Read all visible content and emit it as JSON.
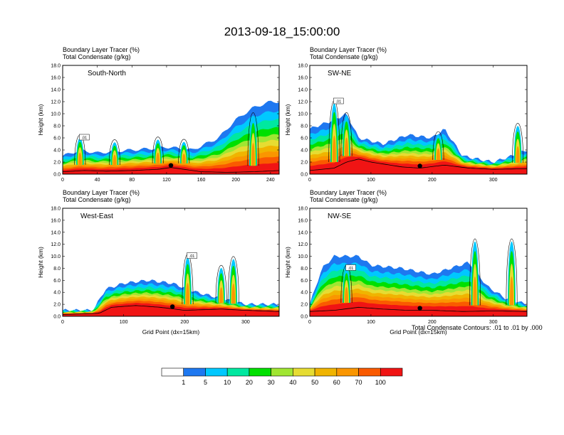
{
  "figure": {
    "title": "2013-09-18_15:00:00",
    "contour_note": "Total Condensate Contours: .01 to .01 by .000",
    "xaxis_title": "Grid Point (dx=15km)",
    "yaxis_title": "Height (km)",
    "field_label_1": "Boundary Layer Tracer",
    "field_unit_1": "(%)",
    "field_label_2": "Total Condensate",
    "field_unit_2": "(g/kg)",
    "contour_label": ".01"
  },
  "colorbar": {
    "colors": [
      "#ffffff",
      "#1e78f0",
      "#00c8ff",
      "#00e8a0",
      "#00e000",
      "#a0e632",
      "#e6dc32",
      "#f0b400",
      "#fa9600",
      "#fa5a00",
      "#f01414"
    ],
    "labels": [
      "1",
      "5",
      "10",
      "20",
      "30",
      "40",
      "50",
      "60",
      "70",
      "100"
    ]
  },
  "chart_data": [
    {
      "type": "heatmap",
      "name": "South-North",
      "xlabel": "",
      "ylabel": "Height (km)",
      "xlim": [
        0,
        250
      ],
      "ylim": [
        0,
        18
      ],
      "xticks": [
        0,
        40,
        80,
        120,
        160,
        200,
        240
      ],
      "yticks": [
        "0.0",
        "2.0",
        "4.0",
        "6.0",
        "8.0",
        "10.0",
        "12.0",
        "14.0",
        "16.0",
        "18.0"
      ],
      "marker_x": 125,
      "terrain_km": [
        [
          0,
          0.4
        ],
        [
          25,
          0.6
        ],
        [
          50,
          0.5
        ],
        [
          80,
          0.6
        ],
        [
          110,
          0.8
        ],
        [
          125,
          1.1
        ],
        [
          140,
          0.8
        ],
        [
          160,
          0.4
        ],
        [
          190,
          0.3
        ],
        [
          220,
          0.4
        ],
        [
          250,
          0.6
        ]
      ],
      "pbl_top_km": [
        [
          0,
          3.0
        ],
        [
          20,
          4.0
        ],
        [
          40,
          3.5
        ],
        [
          60,
          3.8
        ],
        [
          80,
          4.0
        ],
        [
          100,
          4.2
        ],
        [
          120,
          4.5
        ],
        [
          150,
          4.0
        ],
        [
          180,
          6.0
        ],
        [
          200,
          9.0
        ],
        [
          220,
          11.0
        ],
        [
          240,
          12.0
        ],
        [
          250,
          12.0
        ]
      ],
      "cloud_tops_km": [
        [
          20,
          7.5
        ],
        [
          60,
          6.5
        ],
        [
          110,
          7.0
        ],
        [
          140,
          6.5
        ],
        [
          220,
          12.5
        ]
      ]
    },
    {
      "type": "heatmap",
      "name": "SW-NE",
      "xlabel": "",
      "ylabel": "Height (km)",
      "xlim": [
        0,
        355
      ],
      "ylim": [
        0,
        18
      ],
      "xticks": [
        0,
        100,
        200,
        300
      ],
      "yticks": [
        "0.0",
        "2.0",
        "4.0",
        "6.0",
        "8.0",
        "10.0",
        "12.0",
        "14.0",
        "16.0",
        "18.0"
      ],
      "marker_x": 180,
      "terrain_km": [
        [
          0,
          0.6
        ],
        [
          40,
          1.0
        ],
        [
          60,
          2.0
        ],
        [
          80,
          2.5
        ],
        [
          100,
          2.0
        ],
        [
          150,
          1.2
        ],
        [
          180,
          1.0
        ],
        [
          220,
          1.5
        ],
        [
          260,
          1.0
        ],
        [
          300,
          0.8
        ],
        [
          355,
          0.9
        ]
      ],
      "pbl_top_km": [
        [
          0,
          7.5
        ],
        [
          40,
          9.0
        ],
        [
          60,
          10.0
        ],
        [
          80,
          6.0
        ],
        [
          120,
          5.0
        ],
        [
          160,
          6.5
        ],
        [
          200,
          6.0
        ],
        [
          220,
          7.5
        ],
        [
          250,
          3.0
        ],
        [
          300,
          2.0
        ],
        [
          330,
          3.0
        ],
        [
          355,
          4.0
        ]
      ],
      "cloud_tops_km": [
        [
          40,
          15.0
        ],
        [
          60,
          12.0
        ],
        [
          210,
          8.0
        ],
        [
          340,
          10.0
        ]
      ]
    },
    {
      "type": "heatmap",
      "name": "West-East",
      "xlabel": "Grid Point (dx=15km)",
      "ylabel": "Height (km)",
      "xlim": [
        0,
        355
      ],
      "ylim": [
        0,
        18
      ],
      "xticks": [
        0,
        100,
        200,
        300
      ],
      "yticks": [
        "0.0",
        "2.0",
        "4.0",
        "6.0",
        "8.0",
        "10.0",
        "12.0",
        "14.0",
        "16.0",
        "18.0"
      ],
      "marker_x": 180,
      "terrain_km": [
        [
          0,
          0.3
        ],
        [
          60,
          0.5
        ],
        [
          80,
          1.5
        ],
        [
          120,
          1.8
        ],
        [
          160,
          1.5
        ],
        [
          200,
          1.0
        ],
        [
          260,
          1.2
        ],
        [
          300,
          1.0
        ],
        [
          355,
          0.8
        ]
      ],
      "pbl_top_km": [
        [
          0,
          1.0
        ],
        [
          50,
          1.0
        ],
        [
          70,
          4.5
        ],
        [
          100,
          5.5
        ],
        [
          140,
          6.0
        ],
        [
          180,
          5.5
        ],
        [
          220,
          4.0
        ],
        [
          260,
          3.0
        ],
        [
          300,
          2.0
        ],
        [
          355,
          2.0
        ]
      ],
      "cloud_tops_km": [
        [
          205,
          12.5
        ],
        [
          260,
          10.0
        ],
        [
          280,
          12.0
        ]
      ]
    },
    {
      "type": "heatmap",
      "name": "NW-SE",
      "xlabel": "Grid Point (dx=15km)",
      "ylabel": "Height (km)",
      "xlim": [
        0,
        355
      ],
      "ylim": [
        0,
        18
      ],
      "xticks": [
        0,
        100,
        200,
        300
      ],
      "yticks": [
        "0.0",
        "2.0",
        "4.0",
        "6.0",
        "8.0",
        "10.0",
        "12.0",
        "14.0",
        "16.0",
        "18.0"
      ],
      "marker_x": 180,
      "terrain_km": [
        [
          0,
          0.8
        ],
        [
          40,
          1.0
        ],
        [
          80,
          1.5
        ],
        [
          120,
          1.2
        ],
        [
          160,
          1.0
        ],
        [
          200,
          1.0
        ],
        [
          250,
          0.8
        ],
        [
          300,
          0.9
        ],
        [
          355,
          0.8
        ]
      ],
      "pbl_top_km": [
        [
          0,
          2.0
        ],
        [
          20,
          8.0
        ],
        [
          40,
          10.0
        ],
        [
          80,
          10.0
        ],
        [
          100,
          8.5
        ],
        [
          150,
          8.0
        ],
        [
          200,
          7.0
        ],
        [
          230,
          8.0
        ],
        [
          260,
          9.0
        ],
        [
          290,
          5.0
        ],
        [
          320,
          3.0
        ],
        [
          355,
          2.0
        ]
      ],
      "cloud_tops_km": [
        [
          60,
          10.0
        ],
        [
          270,
          16.0
        ],
        [
          330,
          16.0
        ]
      ]
    }
  ]
}
